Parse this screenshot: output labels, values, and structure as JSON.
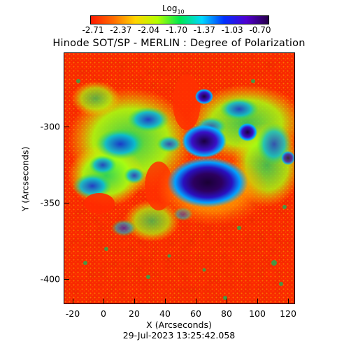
{
  "colorbar": {
    "title": "Log",
    "title_subscript": "10",
    "tick_labels": [
      "-2.71",
      "-2.37",
      "-2.04",
      "-1.70",
      "-1.37",
      "-1.03",
      "-0.70"
    ],
    "colors": [
      "#ff1a00",
      "#ff6a00",
      "#ffd400",
      "#b4ff00",
      "#00e850",
      "#00d8ff",
      "#0030ff",
      "#5000d0",
      "#28004a"
    ]
  },
  "title": "Hinode SOT/SP - MERLIN : Degree of Polarization",
  "x_axis": {
    "label": "X (Arcseconds)",
    "ticks": [
      "-20",
      "0",
      "20",
      "40",
      "60",
      "80",
      "100",
      "120"
    ]
  },
  "y_axis": {
    "label": "Y (Arcseconds)",
    "ticks": [
      "-300",
      "-350",
      "-400"
    ]
  },
  "timestamp": "29-Jul-2023 13:25:42.058"
}
